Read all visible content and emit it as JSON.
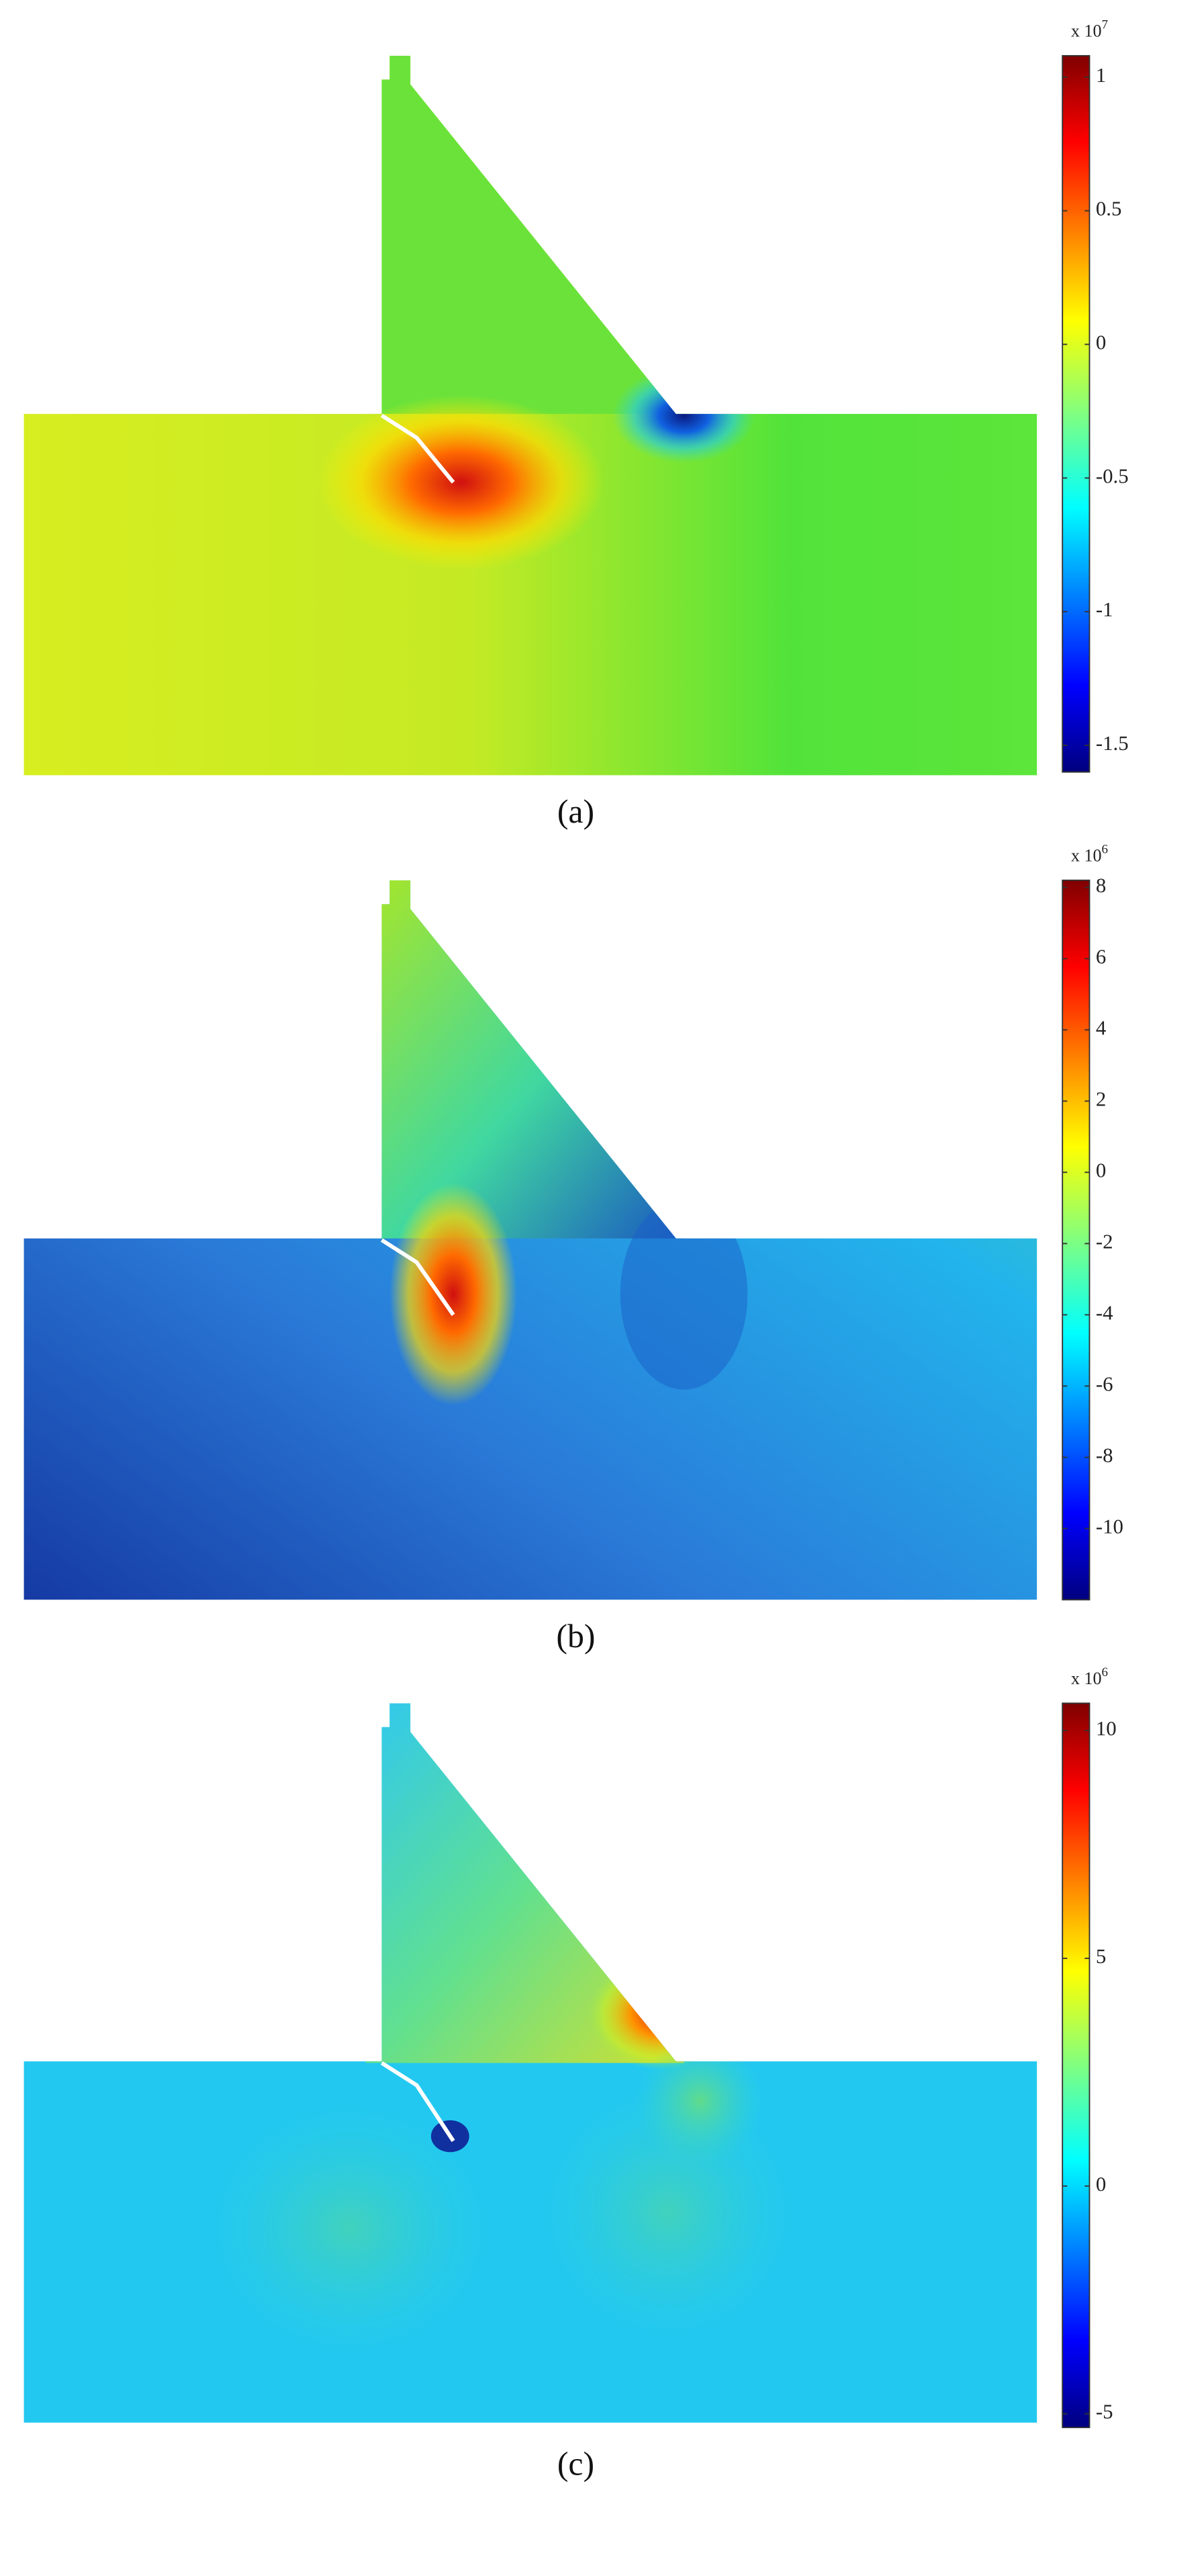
{
  "chart_data": [
    {
      "type": "contour",
      "caption": "(a)",
      "scale_label": "x 10",
      "scale_exponent": "7",
      "ylim": [
        -1.6,
        1.08
      ],
      "yticks": [
        1,
        0.5,
        0,
        -0.5,
        -1,
        -1.5
      ]
    },
    {
      "type": "contour",
      "caption": "(b)",
      "scale_label": "x 10",
      "scale_exponent": "6",
      "ylim": [
        -12,
        8.2
      ],
      "yticks": [
        8,
        6,
        4,
        2,
        0,
        -2,
        -4,
        -6,
        -8,
        -10
      ]
    },
    {
      "type": "contour",
      "caption": "(c)",
      "scale_label": "x 10",
      "scale_exponent": "6",
      "ylim": [
        -5.3,
        10.6
      ],
      "yticks": [
        10,
        5,
        0,
        -5
      ]
    }
  ]
}
